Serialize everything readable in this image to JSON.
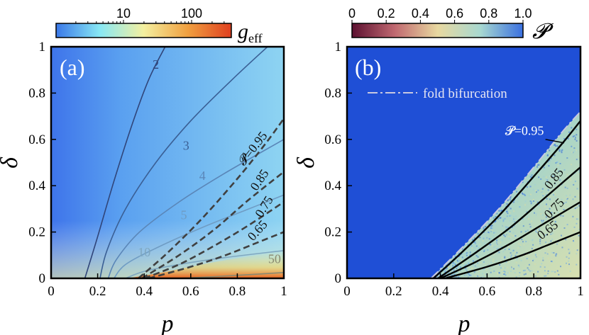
{
  "chart_data": [
    {
      "type": "heatmap",
      "panel_label": "(a)",
      "xlabel": "p",
      "ylabel": "δ",
      "xlim": [
        0,
        1
      ],
      "ylim": [
        0,
        1
      ],
      "x_ticks": [
        "0",
        "0.2",
        "0.4",
        "0.6",
        "0.8",
        "1"
      ],
      "y_ticks": [
        "0",
        "0.2",
        "0.4",
        "0.6",
        "0.8",
        "1"
      ],
      "colorbar": {
        "label_main": "g",
        "label_sub": "eff",
        "scale": "log",
        "ticks": [
          "10",
          "100"
        ],
        "colors": [
          "#3a78e8",
          "#88e8f4",
          "#f4f0a0",
          "#f0a040",
          "#e04020"
        ]
      },
      "g_contours": [
        {
          "label": "2",
          "points": [
            [
              0.145,
              0
            ],
            [
              0.2,
              0.18
            ],
            [
              0.27,
              0.42
            ],
            [
              0.35,
              0.67
            ],
            [
              0.42,
              0.86
            ],
            [
              0.49,
              1.0
            ]
          ],
          "label_at": [
            0.45,
            0.905
          ]
        },
        {
          "label": "3",
          "points": [
            [
              0.21,
              0
            ],
            [
              0.24,
              0.12
            ],
            [
              0.32,
              0.3
            ],
            [
              0.45,
              0.5
            ],
            [
              0.6,
              0.68
            ],
            [
              0.78,
              0.86
            ],
            [
              0.93,
              1.0
            ]
          ],
          "label_at": [
            0.58,
            0.555
          ]
        },
        {
          "label": "4",
          "points": [
            [
              0.245,
              0
            ],
            [
              0.28,
              0.08
            ],
            [
              0.38,
              0.2
            ],
            [
              0.55,
              0.33
            ],
            [
              0.74,
              0.45
            ],
            [
              1.0,
              0.6
            ]
          ],
          "label_at": [
            0.65,
            0.425
          ]
        },
        {
          "label": "5",
          "points": [
            [
              0.27,
              0
            ],
            [
              0.32,
              0.06
            ],
            [
              0.45,
              0.13
            ],
            [
              0.65,
              0.22
            ],
            [
              0.85,
              0.3
            ],
            [
              1.0,
              0.36
            ]
          ],
          "label_at": [
            0.57,
            0.255
          ]
        },
        {
          "label": "10",
          "points": [
            [
              0.32,
              0
            ],
            [
              0.4,
              0.03
            ],
            [
              0.55,
              0.06
            ],
            [
              0.75,
              0.09
            ],
            [
              1.0,
              0.12
            ]
          ],
          "label_at": [
            0.4,
            0.095
          ]
        },
        {
          "label": "50",
          "points": [
            [
              0.55,
              0
            ],
            [
              0.75,
              0.01
            ],
            [
              1.0,
              0.025
            ]
          ],
          "label_at": [
            0.96,
            0.065
          ]
        }
      ],
      "P_contours": [
        {
          "label": "𝓟=0.95",
          "points": [
            [
              0.375,
              0
            ],
            [
              0.5,
              0.11
            ],
            [
              0.65,
              0.26
            ],
            [
              0.8,
              0.43
            ],
            [
              0.92,
              0.58
            ],
            [
              1.0,
              0.69
            ]
          ],
          "label_at": [
            0.88,
            0.55
          ]
        },
        {
          "label": "0.85",
          "points": [
            [
              0.39,
              0
            ],
            [
              0.55,
              0.1
            ],
            [
              0.7,
              0.21
            ],
            [
              0.85,
              0.34
            ],
            [
              1.0,
              0.46
            ]
          ],
          "label_at": [
            0.91,
            0.415
          ]
        },
        {
          "label": "0.75",
          "points": [
            [
              0.4,
              0
            ],
            [
              0.55,
              0.06
            ],
            [
              0.7,
              0.14
            ],
            [
              0.85,
              0.23
            ],
            [
              1.0,
              0.33
            ]
          ],
          "label_at": [
            0.93,
            0.3
          ]
        },
        {
          "label": "0.65",
          "points": [
            [
              0.42,
              0
            ],
            [
              0.6,
              0.05
            ],
            [
              0.75,
              0.1
            ],
            [
              0.9,
              0.16
            ],
            [
              1.0,
              0.2
            ]
          ],
          "label_at": [
            0.9,
            0.195
          ]
        }
      ]
    },
    {
      "type": "heatmap",
      "panel_label": "(b)",
      "xlabel": "p",
      "ylabel": "δ",
      "xlim": [
        0,
        1
      ],
      "ylim": [
        0,
        1
      ],
      "x_ticks": [
        "0",
        "0.2",
        "0.4",
        "0.6",
        "0.8",
        "1"
      ],
      "y_ticks": [
        "0",
        "0.2",
        "0.4",
        "0.6",
        "0.8",
        "1"
      ],
      "colorbar": {
        "label": "𝓟",
        "scale": "linear",
        "ticks": [
          "0",
          "0.2",
          "0.4",
          "0.6",
          "0.8",
          "1.0"
        ],
        "colors": [
          "#5c1030",
          "#c06870",
          "#e8d8a0",
          "#a8d8d0",
          "#3a70e0"
        ]
      },
      "background_color": "#1f4fd6",
      "legend": "fold bifurcation",
      "fold_curve": [
        [
          0.36,
          0
        ],
        [
          0.5,
          0.14
        ],
        [
          0.65,
          0.3
        ],
        [
          0.8,
          0.48
        ],
        [
          0.92,
          0.63
        ],
        [
          1.0,
          0.72
        ]
      ],
      "P_contours": [
        {
          "label": "𝓟=0.95",
          "points": [
            [
              0.37,
              0
            ],
            [
              0.5,
              0.12
            ],
            [
              0.65,
              0.27
            ],
            [
              0.8,
              0.44
            ],
            [
              0.92,
              0.58
            ],
            [
              1.0,
              0.68
            ]
          ],
          "label_at": [
            0.76,
            0.62
          ]
        },
        {
          "label": "0.85",
          "points": [
            [
              0.39,
              0
            ],
            [
              0.55,
              0.11
            ],
            [
              0.7,
              0.22
            ],
            [
              0.85,
              0.35
            ],
            [
              1.0,
              0.48
            ]
          ],
          "label_at": [
            0.9,
            0.42
          ]
        },
        {
          "label": "0.75",
          "points": [
            [
              0.4,
              0
            ],
            [
              0.55,
              0.07
            ],
            [
              0.7,
              0.15
            ],
            [
              0.85,
              0.24
            ],
            [
              1.0,
              0.33
            ]
          ],
          "label_at": [
            0.9,
            0.29
          ]
        },
        {
          "label": "0.65",
          "points": [
            [
              0.42,
              0
            ],
            [
              0.6,
              0.05
            ],
            [
              0.75,
              0.1
            ],
            [
              0.9,
              0.16
            ],
            [
              1.0,
              0.2
            ]
          ],
          "label_at": [
            0.87,
            0.195
          ]
        }
      ]
    }
  ]
}
